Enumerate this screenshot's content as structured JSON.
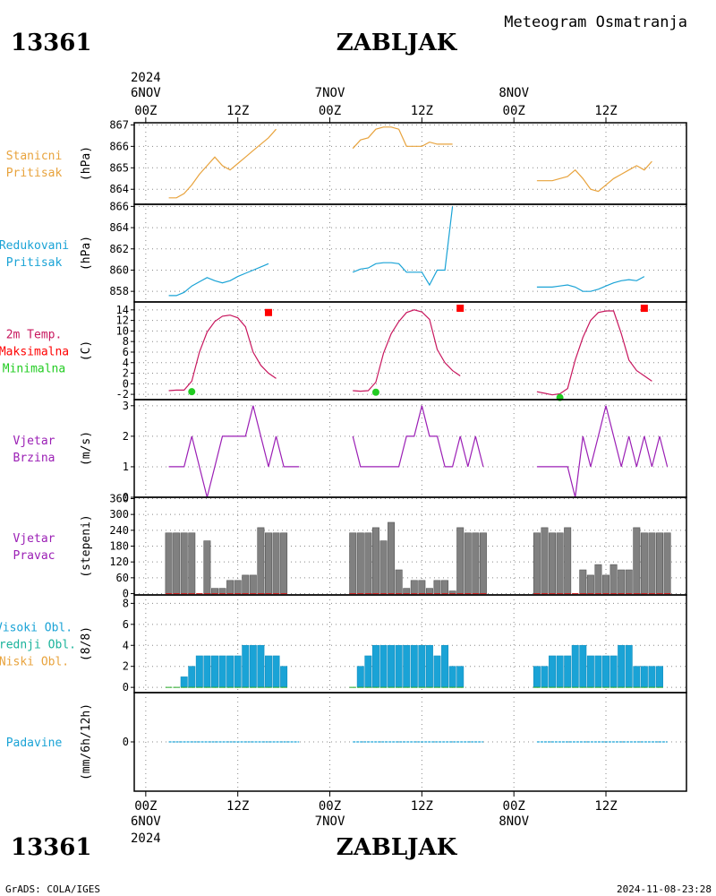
{
  "header": {
    "station_id": "13361",
    "station_name": "ZABLJAK",
    "meteogram_title": "Meteogram Osmatranja"
  },
  "footer": {
    "station_id": "13361",
    "station_name": "ZABLJAK",
    "source": "GrADS: COLA/IGES",
    "timestamp": "2024-11-08-23:28"
  },
  "colors": {
    "pressure": "#e8a33d",
    "reduced_pressure": "#1aa3d6",
    "temp": "#c8175e",
    "tmax": "#ff0000",
    "tmin": "#22cc22",
    "wind_speed": "#9b1fb5",
    "wind_dir_bar": "#808080",
    "cloud_high": "#1aa3d6",
    "cloud_mid": "#1ab39b",
    "cloud_low": "#e8a33d",
    "precip": "#1aa3d6"
  },
  "time_axis": {
    "top_year": "2024",
    "bottom_year": "2024",
    "ticks": [
      {
        "h": 0,
        "top_date": "6NOV",
        "label": "00Z",
        "bottom_date": "6NOV"
      },
      {
        "h": 12,
        "top_date": "",
        "label": "12Z",
        "bottom_date": ""
      },
      {
        "h": 24,
        "top_date": "7NOV",
        "label": "00Z",
        "bottom_date": "7NOV"
      },
      {
        "h": 36,
        "top_date": "",
        "label": "12Z",
        "bottom_date": ""
      },
      {
        "h": 48,
        "top_date": "8NOV",
        "label": "00Z",
        "bottom_date": "8NOV"
      },
      {
        "h": 60,
        "top_date": "",
        "label": "12Z",
        "bottom_date": ""
      }
    ]
  },
  "chart_data": [
    {
      "id": "station_pressure",
      "type": "line",
      "labels": [
        "Stanicni",
        "Pritisak"
      ],
      "ylabel": "(hPa)",
      "ylim": [
        863.3,
        867.1
      ],
      "yticks": [
        864,
        865,
        866,
        867
      ],
      "x": [
        3,
        4,
        5,
        6,
        7,
        8,
        9,
        10,
        11,
        12,
        13,
        14,
        15,
        16,
        17,
        18,
        19,
        20,
        27,
        28,
        29,
        30,
        31,
        32,
        33,
        34,
        35,
        36,
        37,
        38,
        39,
        40,
        41,
        42,
        43,
        44,
        51,
        52,
        53,
        54,
        55,
        56,
        57,
        58,
        59,
        60,
        61,
        62,
        63,
        64,
        65,
        66,
        67,
        68
      ],
      "y": [
        863.6,
        863.6,
        863.8,
        864.2,
        864.7,
        865.1,
        865.5,
        865.1,
        864.9,
        865.2,
        865.5,
        865.8,
        866.1,
        866.4,
        866.8,
        null,
        null,
        null,
        865.9,
        866.3,
        866.4,
        866.8,
        866.9,
        866.9,
        866.8,
        866.0,
        866.0,
        866.0,
        866.2,
        866.1,
        866.1,
        866.1,
        null,
        null,
        null,
        null,
        864.4,
        864.4,
        864.4,
        864.5,
        864.6,
        864.9,
        864.5,
        864.0,
        863.9,
        864.2,
        864.5,
        864.7,
        864.9,
        865.1,
        864.9,
        865.3,
        null,
        null
      ]
    },
    {
      "id": "reduced_pressure",
      "type": "line",
      "labels": [
        "Redukovani",
        "Pritisak"
      ],
      "ylabel": "(hPa)",
      "ylim": [
        857,
        866.2
      ],
      "yticks": [
        858,
        860,
        862,
        864,
        866
      ],
      "x": [
        3,
        4,
        5,
        6,
        7,
        8,
        9,
        10,
        11,
        12,
        13,
        14,
        15,
        16,
        17,
        18,
        19,
        20,
        27,
        28,
        29,
        30,
        31,
        32,
        33,
        34,
        35,
        36,
        37,
        38,
        39,
        40,
        41,
        42,
        43,
        44,
        51,
        52,
        53,
        54,
        55,
        56,
        57,
        58,
        59,
        60,
        61,
        62,
        63,
        64,
        65,
        66,
        67,
        68
      ],
      "y": [
        857.6,
        857.6,
        857.9,
        858.5,
        858.9,
        859.3,
        859.0,
        858.8,
        859.0,
        859.4,
        859.7,
        860.0,
        860.3,
        860.6,
        null,
        null,
        null,
        null,
        859.8,
        860.1,
        860.2,
        860.6,
        860.7,
        860.7,
        860.6,
        859.8,
        859.8,
        859.8,
        858.6,
        860.0,
        860.0,
        866.0,
        null,
        null,
        null,
        null,
        858.4,
        858.4,
        858.4,
        858.5,
        858.6,
        858.4,
        858.0,
        858.0,
        858.2,
        858.5,
        858.8,
        859.0,
        859.1,
        859.0,
        859.4,
        null,
        null,
        null
      ]
    },
    {
      "id": "temperature",
      "type": "line",
      "labels": [
        "2m Temp.",
        "Maksimalna",
        "Minimalna"
      ],
      "ylabel": "(C)",
      "ylim": [
        -3,
        15.5
      ],
      "yticks": [
        -2,
        0,
        2,
        4,
        6,
        8,
        10,
        12,
        14
      ],
      "x": [
        3,
        4,
        5,
        6,
        7,
        8,
        9,
        10,
        11,
        12,
        13,
        14,
        15,
        16,
        17,
        18,
        19,
        20,
        27,
        28,
        29,
        30,
        31,
        32,
        33,
        34,
        35,
        36,
        37,
        38,
        39,
        40,
        41,
        42,
        43,
        44,
        51,
        52,
        53,
        54,
        55,
        56,
        57,
        58,
        59,
        60,
        61,
        62,
        63,
        64,
        65,
        66,
        67,
        68
      ],
      "y": [
        -1.3,
        -1.2,
        -1.2,
        0.5,
        6.0,
        9.8,
        11.8,
        12.8,
        13.0,
        12.5,
        10.8,
        6.0,
        3.5,
        2.0,
        1.0,
        null,
        null,
        null,
        -1.3,
        -1.4,
        -1.3,
        0.3,
        5.8,
        9.5,
        11.8,
        13.5,
        14.0,
        13.6,
        12.2,
        6.5,
        4.0,
        2.5,
        1.5,
        null,
        null,
        null,
        -1.5,
        -1.8,
        -2.1,
        -1.9,
        -0.9,
        4.5,
        8.8,
        12.0,
        13.5,
        13.8,
        13.8,
        9.5,
        4.5,
        2.5,
        1.5,
        0.5,
        null,
        null
      ],
      "max": [
        {
          "x": 16,
          "y": 13.5
        },
        {
          "x": 41,
          "y": 14.3
        },
        {
          "x": 65,
          "y": 14.3
        }
      ],
      "min": [
        {
          "x": 6,
          "y": -1.5
        },
        {
          "x": 30,
          "y": -1.6
        },
        {
          "x": 54,
          "y": -2.6
        }
      ]
    },
    {
      "id": "wind_speed",
      "type": "line",
      "labels": [
        "Vjetar",
        "Brzina"
      ],
      "ylabel": "(m/s)",
      "ylim": [
        0,
        3.2
      ],
      "yticks": [
        0,
        1,
        2,
        3
      ],
      "x": [
        3,
        4,
        5,
        6,
        7,
        8,
        9,
        10,
        11,
        12,
        13,
        14,
        15,
        16,
        17,
        18,
        19,
        20,
        27,
        28,
        29,
        30,
        31,
        32,
        33,
        34,
        35,
        36,
        37,
        38,
        39,
        40,
        41,
        42,
        43,
        44,
        51,
        52,
        53,
        54,
        55,
        56,
        57,
        58,
        59,
        60,
        61,
        62,
        63,
        64,
        65,
        66,
        67,
        68
      ],
      "y": [
        1,
        1,
        1,
        2,
        1,
        0,
        1,
        2,
        2,
        2,
        2,
        3,
        2,
        1,
        2,
        1,
        1,
        1,
        2,
        1,
        1,
        1,
        1,
        1,
        1,
        2,
        2,
        3,
        2,
        2,
        1,
        1,
        2,
        1,
        2,
        1,
        1,
        1,
        1,
        1,
        1,
        0,
        2,
        1,
        2,
        3,
        2,
        1,
        2,
        1,
        2,
        1,
        2,
        1
      ]
    },
    {
      "id": "wind_direction",
      "type": "bar",
      "labels": [
        "Vjetar",
        "Pravac"
      ],
      "ylabel": "(stepeni)",
      "ylim": [
        -5,
        365
      ],
      "yticks": [
        0,
        60,
        120,
        180,
        240,
        300,
        360
      ],
      "x": [
        3,
        4,
        5,
        6,
        7,
        8,
        9,
        10,
        11,
        12,
        13,
        14,
        15,
        16,
        17,
        18,
        19,
        20,
        27,
        28,
        29,
        30,
        31,
        32,
        33,
        34,
        35,
        36,
        37,
        38,
        39,
        40,
        41,
        42,
        43,
        44,
        51,
        52,
        53,
        54,
        55,
        56,
        57,
        58,
        59,
        60,
        61,
        62,
        63,
        64,
        65,
        66,
        67,
        68
      ],
      "y": [
        230,
        230,
        230,
        230,
        0,
        200,
        20,
        20,
        50,
        50,
        70,
        70,
        250,
        230,
        230,
        230,
        null,
        null,
        230,
        230,
        230,
        250,
        200,
        270,
        90,
        20,
        50,
        50,
        20,
        50,
        50,
        10,
        250,
        230,
        230,
        230,
        230,
        250,
        230,
        230,
        250,
        0,
        90,
        70,
        110,
        70,
        110,
        90,
        90,
        250,
        230,
        230,
        230,
        230
      ]
    },
    {
      "id": "cloud_cover",
      "type": "bar",
      "labels": [
        "Visoki Obl.",
        "Srednji Obl.",
        "Niski Obl."
      ],
      "ylabel": "(8/8)",
      "ylim": [
        -0.5,
        8.8
      ],
      "yticks": [
        0,
        2,
        4,
        6,
        8
      ],
      "x": [
        3,
        4,
        5,
        6,
        7,
        8,
        9,
        10,
        11,
        12,
        13,
        14,
        15,
        16,
        17,
        18,
        19,
        20,
        27,
        28,
        29,
        30,
        31,
        32,
        33,
        34,
        35,
        36,
        37,
        38,
        39,
        40,
        41,
        42,
        43,
        44,
        51,
        52,
        53,
        54,
        55,
        56,
        57,
        58,
        59,
        60,
        61,
        62,
        63,
        64,
        65,
        66,
        67,
        68
      ],
      "y": [
        0,
        0,
        1,
        2,
        3,
        3,
        3,
        3,
        3,
        3,
        4,
        4,
        4,
        3,
        3,
        2,
        null,
        null,
        0,
        2,
        3,
        4,
        4,
        4,
        4,
        4,
        4,
        4,
        4,
        3,
        4,
        2,
        2,
        null,
        null,
        null,
        2,
        2,
        3,
        3,
        3,
        4,
        4,
        3,
        3,
        3,
        3,
        4,
        4,
        2,
        2,
        2,
        2,
        null
      ]
    },
    {
      "id": "precipitation",
      "type": "line",
      "labels": [
        "Padavine"
      ],
      "ylabel": "(mm/6h/12h)",
      "ylim": [
        -1,
        1
      ],
      "yticks": [
        0
      ],
      "segments": [
        [
          3,
          20
        ],
        [
          27,
          44
        ],
        [
          51,
          68
        ]
      ],
      "value": 0
    }
  ]
}
